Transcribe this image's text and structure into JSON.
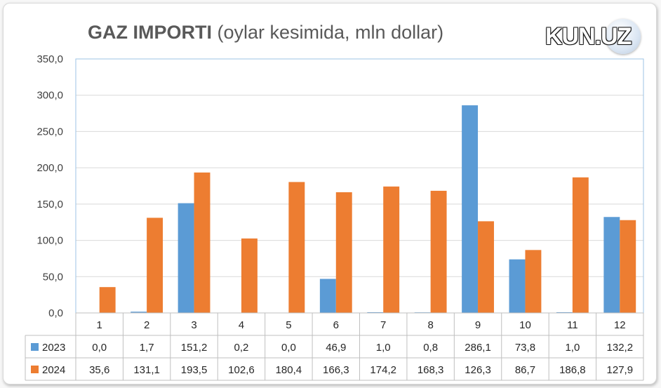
{
  "chart_data": {
    "type": "bar",
    "title_bold": "GAZ IMPORTI",
    "title_rest": " (oylar kesimida, mln dollar)",
    "categories": [
      "1",
      "2",
      "3",
      "4",
      "5",
      "6",
      "7",
      "8",
      "9",
      "10",
      "11",
      "12"
    ],
    "ylim": [
      0,
      350
    ],
    "yticks": [
      "0,0",
      "50,0",
      "100,0",
      "150,0",
      "200,0",
      "250,0",
      "300,0",
      "350,0"
    ],
    "grid": true,
    "legend_placement": "data-table",
    "series": [
      {
        "name": "2023",
        "color": "#5b9bd5",
        "values": [
          0.0,
          1.7,
          151.2,
          0.2,
          0.0,
          46.9,
          1.0,
          0.8,
          286.1,
          73.8,
          1.0,
          132.2
        ],
        "labels": [
          "0,0",
          "1,7",
          "151,2",
          "0,2",
          "0,0",
          "46,9",
          "1,0",
          "0,8",
          "286,1",
          "73,8",
          "1,0",
          "132,2"
        ]
      },
      {
        "name": "2024",
        "color": "#ed7d31",
        "values": [
          35.6,
          131.1,
          193.5,
          102.6,
          180.4,
          166.3,
          174.2,
          168.3,
          126.3,
          86.7,
          186.8,
          127.9
        ],
        "labels": [
          "35,6",
          "131,1",
          "193,5",
          "102,6",
          "180,4",
          "166,3",
          "174,2",
          "168,3",
          "126,3",
          "86,7",
          "186,8",
          "127,9"
        ]
      }
    ]
  },
  "logo": {
    "text": "KUN.UZ"
  }
}
